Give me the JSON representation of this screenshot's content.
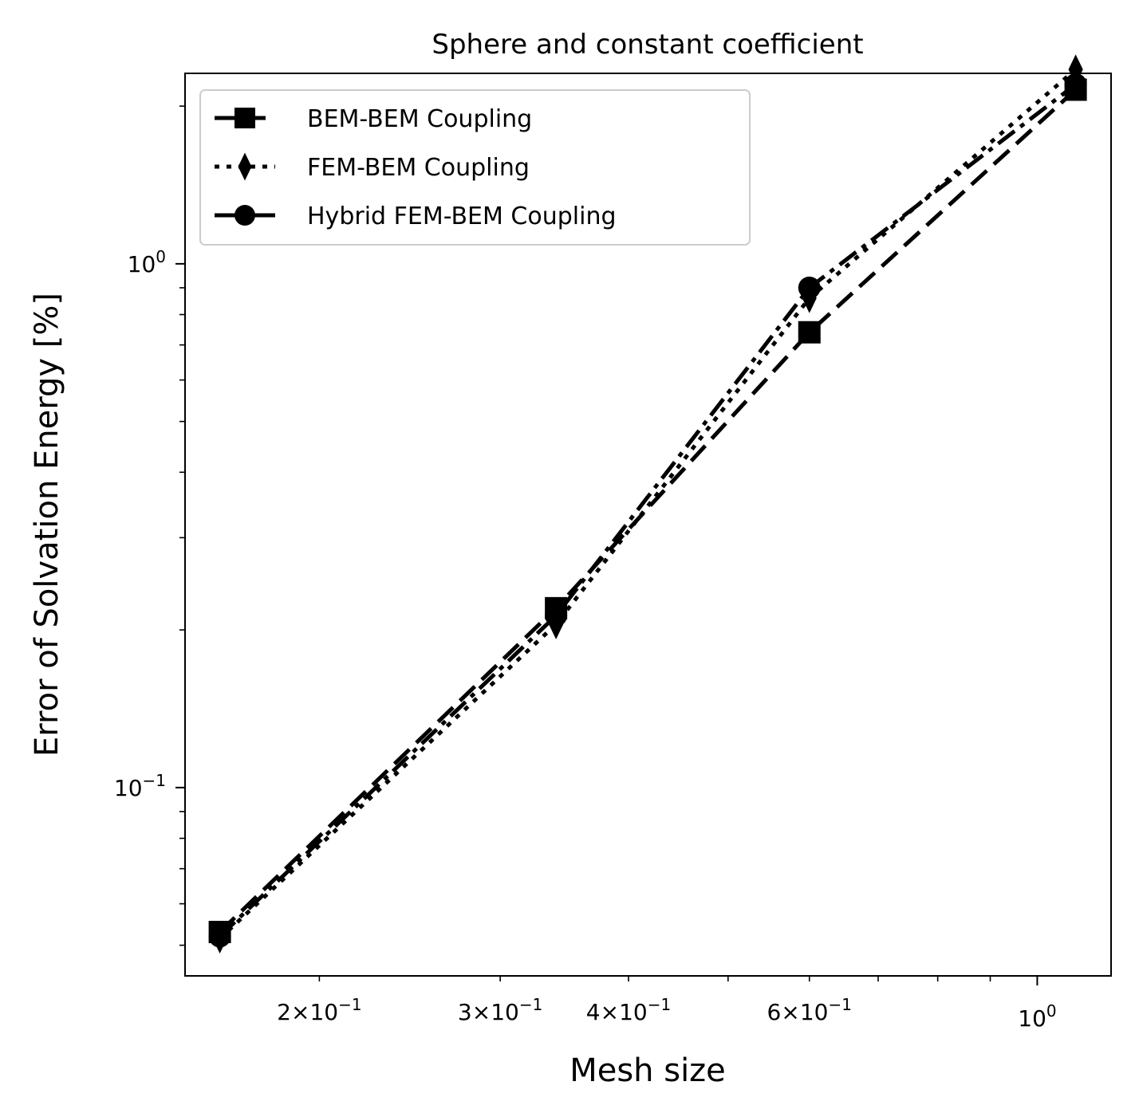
{
  "chart_data": {
    "type": "line",
    "title": "Sphere and constant coefficient",
    "xlabel": "Mesh size",
    "ylabel": "Error of Solvation Energy [%]",
    "xscale": "log",
    "yscale": "log",
    "xlim": [
      0.148,
      1.18
    ],
    "ylim": [
      0.0437,
      2.31
    ],
    "grid": false,
    "legend_position": "top-left",
    "x_major_ticks": [
      {
        "value": 1.0,
        "base": "10",
        "exp": "0"
      }
    ],
    "x_minor_tick_labels": [
      {
        "value": 0.2,
        "mant": "2",
        "base": "10",
        "exp": "−1"
      },
      {
        "value": 0.3,
        "mant": "3",
        "base": "10",
        "exp": "−1"
      },
      {
        "value": 0.4,
        "mant": "4",
        "base": "10",
        "exp": "−1"
      },
      {
        "value": 0.6,
        "mant": "6",
        "base": "10",
        "exp": "−1"
      }
    ],
    "y_major_ticks": [
      {
        "value": 0.1,
        "base": "10",
        "exp": "−1"
      },
      {
        "value": 1.0,
        "base": "10",
        "exp": "0"
      }
    ],
    "x": [
      0.16,
      0.34,
      0.6,
      1.09
    ],
    "series": [
      {
        "name": "BEM-BEM Coupling",
        "linestyle": "dashed",
        "marker": "square",
        "color": "#000000",
        "values": [
          0.053,
          0.22,
          0.74,
          2.15
        ]
      },
      {
        "name": "FEM-BEM Coupling",
        "linestyle": "dotted",
        "marker": "thin-diamond",
        "color": "#000000",
        "values": [
          0.0515,
          0.205,
          0.86,
          2.35
        ]
      },
      {
        "name": "Hybrid FEM-BEM Coupling",
        "linestyle": "dashdot",
        "marker": "circle",
        "color": "#000000",
        "values": [
          0.052,
          0.213,
          0.9,
          2.2
        ]
      }
    ]
  }
}
